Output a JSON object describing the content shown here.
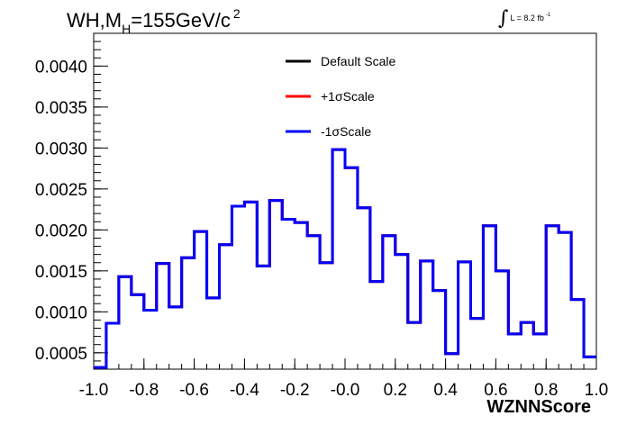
{
  "title": {
    "main": "WH,M",
    "sub": "H",
    "rest": "=155GeV/c",
    "sup": "2"
  },
  "luminosity": {
    "label": "L = 8.2 fb",
    "sup": "-1"
  },
  "chart_data": {
    "type": "histogram",
    "xlabel": "WZNNScore",
    "xlim": [
      -1.0,
      1.0
    ],
    "ylim": [
      0.0003,
      0.0044
    ],
    "x_ticks": [
      "-1.0",
      "-0.8",
      "-0.6",
      "-0.4",
      "-0.2",
      "-0.0",
      "0.2",
      "0.4",
      "0.6",
      "0.8",
      "1.0"
    ],
    "y_ticks": [
      "0.0005",
      "0.0010",
      "0.0015",
      "0.0020",
      "0.0025",
      "0.0030",
      "0.0035",
      "0.0040"
    ],
    "bin_edges": [
      -1.0,
      -0.95,
      -0.9,
      -0.85,
      -0.8,
      -0.75,
      -0.7,
      -0.65,
      -0.6,
      -0.55,
      -0.5,
      -0.45,
      -0.4,
      -0.35,
      -0.3,
      -0.25,
      -0.2,
      -0.15,
      -0.1,
      -0.05,
      0.0,
      0.05,
      0.1,
      0.15,
      0.2,
      0.25,
      0.3,
      0.35,
      0.4,
      0.45,
      0.5,
      0.55,
      0.6,
      0.65,
      0.7,
      0.75,
      0.8,
      0.85,
      0.9,
      0.95,
      1.0
    ],
    "legend_position": "top-center",
    "series": [
      {
        "name": "Default Scale",
        "color": "#000000",
        "values": [
          0.00032,
          0.00086,
          0.00143,
          0.00121,
          0.00102,
          0.00159,
          0.00106,
          0.00166,
          0.00198,
          0.00117,
          0.00182,
          0.00229,
          0.00234,
          0.00156,
          0.00236,
          0.00213,
          0.00209,
          0.00193,
          0.0016,
          0.00298,
          0.00276,
          0.00227,
          0.00137,
          0.00193,
          0.0017,
          0.00087,
          0.00162,
          0.00126,
          0.00049,
          0.00161,
          0.00092,
          0.00205,
          0.0015,
          0.00073,
          0.00087,
          0.00073,
          0.00205,
          0.00197,
          0.00115,
          0.00045
        ]
      },
      {
        "name": "+1σScale",
        "color": "#ff0000",
        "values": [
          0.00032,
          0.00086,
          0.00143,
          0.00121,
          0.00102,
          0.00159,
          0.00106,
          0.00166,
          0.00198,
          0.00117,
          0.00182,
          0.00229,
          0.00234,
          0.00156,
          0.00236,
          0.00213,
          0.00209,
          0.00193,
          0.0016,
          0.00298,
          0.00276,
          0.00227,
          0.00137,
          0.00193,
          0.0017,
          0.00087,
          0.00162,
          0.00126,
          0.00049,
          0.00161,
          0.00092,
          0.00205,
          0.0015,
          0.00073,
          0.00087,
          0.00073,
          0.00205,
          0.00197,
          0.00115,
          0.00045
        ]
      },
      {
        "name": "-1σScale",
        "color": "#0000ff",
        "values": [
          0.00032,
          0.00086,
          0.00143,
          0.00121,
          0.00102,
          0.00159,
          0.00106,
          0.00166,
          0.00198,
          0.00117,
          0.00182,
          0.00229,
          0.00234,
          0.00156,
          0.00236,
          0.00213,
          0.00209,
          0.00193,
          0.0016,
          0.00298,
          0.00276,
          0.00227,
          0.00137,
          0.00193,
          0.0017,
          0.00087,
          0.00162,
          0.00126,
          0.00049,
          0.00161,
          0.00092,
          0.00205,
          0.0015,
          0.00073,
          0.00087,
          0.00073,
          0.00205,
          0.00197,
          0.00115,
          0.00045
        ]
      }
    ]
  }
}
